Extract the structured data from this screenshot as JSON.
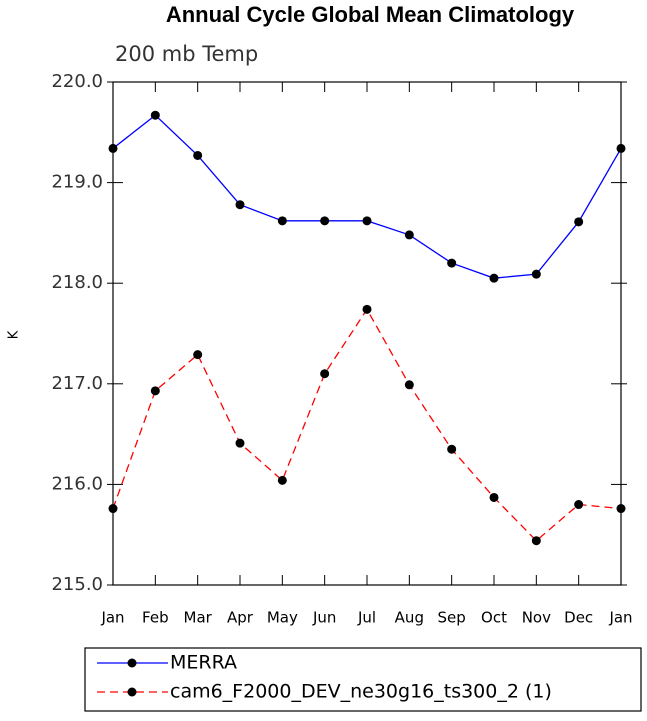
{
  "chart_data": {
    "type": "line",
    "title": "Annual Cycle Global Mean Climatology",
    "subtitle": "200 mb Temp",
    "y_label": "K",
    "categories": [
      "Jan",
      "Feb",
      "Mar",
      "Apr",
      "May",
      "Jun",
      "Jul",
      "Aug",
      "Sep",
      "Oct",
      "Nov",
      "Dec",
      "Jan"
    ],
    "series": [
      {
        "name": "MERRA",
        "color": "#0000ff",
        "line_style": "solid",
        "values": [
          219.34,
          219.67,
          219.27,
          218.78,
          218.62,
          218.62,
          218.62,
          218.48,
          218.2,
          218.05,
          218.09,
          218.61,
          219.34
        ]
      },
      {
        "name": "cam6_F2000_DEV_ne30g16_ts300_2 (1)",
        "color": "#ff0000",
        "line_style": "dashed",
        "values": [
          215.76,
          216.93,
          217.29,
          216.41,
          216.04,
          217.1,
          217.74,
          216.99,
          216.35,
          215.87,
          215.44,
          215.8,
          215.76
        ]
      }
    ],
    "ylim": [
      215,
      220
    ],
    "yticks": [
      {
        "value": 215,
        "label": "215.0"
      },
      {
        "value": 216,
        "label": "216.0"
      },
      {
        "value": 217,
        "label": "217.0"
      },
      {
        "value": 218,
        "label": "218.0"
      },
      {
        "value": 219,
        "label": "219.0"
      },
      {
        "value": 220,
        "label": "220.0"
      }
    ],
    "grid": false
  }
}
